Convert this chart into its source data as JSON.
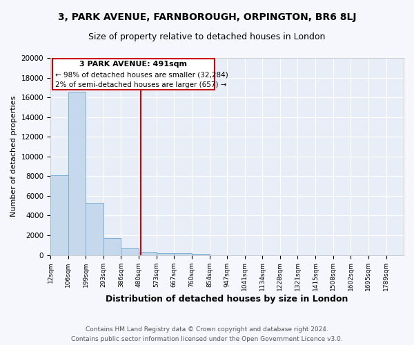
{
  "title1": "3, PARK AVENUE, FARNBOROUGH, ORPINGTON, BR6 8LJ",
  "title2": "Size of property relative to detached houses in London",
  "xlabel": "Distribution of detached houses by size in London",
  "ylabel": "Number of detached properties",
  "annotation_title": "3 PARK AVENUE: 491sqm",
  "annotation_line1": "← 98% of detached houses are smaller (32,284)",
  "annotation_line2": "2% of semi-detached houses are larger (657) →",
  "property_size": 491,
  "bin_edges": [
    12,
    106,
    199,
    293,
    386,
    480,
    573,
    667,
    760,
    854,
    947,
    1041,
    1134,
    1228,
    1321,
    1415,
    1508,
    1602,
    1695,
    1789,
    1882
  ],
  "bar_heights": [
    8100,
    16600,
    5300,
    1750,
    700,
    300,
    200,
    150,
    100,
    0,
    0,
    0,
    0,
    0,
    0,
    0,
    0,
    0,
    0,
    0
  ],
  "bar_color": "#c5d8ec",
  "bar_edge_color": "#7aaed0",
  "vline_color": "#cc0000",
  "annotation_box_color": "#cc0000",
  "background_color": "#e8eef8",
  "grid_color": "#ffffff",
  "footer1": "Contains HM Land Registry data © Crown copyright and database right 2024.",
  "footer2": "Contains public sector information licensed under the Open Government Licence v3.0.",
  "ylim": [
    0,
    20000
  ],
  "yticks": [
    0,
    2000,
    4000,
    6000,
    8000,
    10000,
    12000,
    14000,
    16000,
    18000,
    20000
  ],
  "fig_bg": "#f5f7fc"
}
